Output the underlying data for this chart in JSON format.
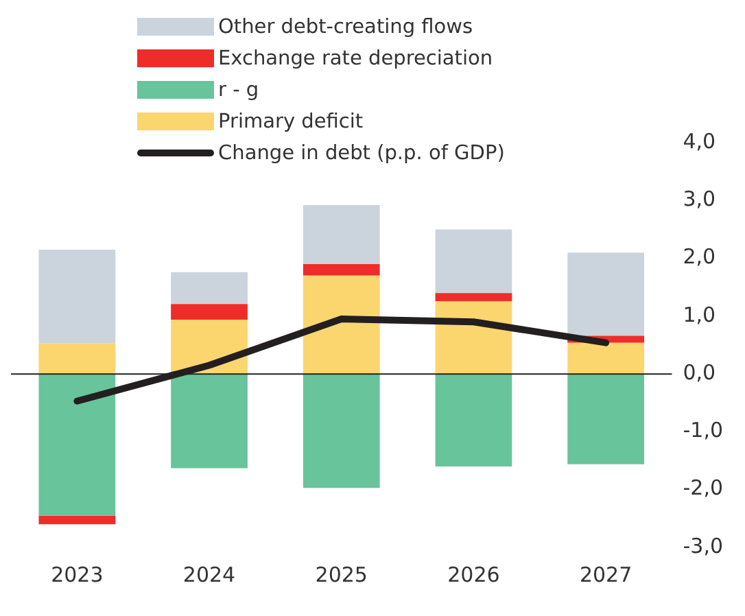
{
  "chart_data": {
    "type": "bar",
    "stacked": true,
    "categories": [
      "2023",
      "2024",
      "2025",
      "2026",
      "2027"
    ],
    "series": [
      {
        "name": "Primary deficit",
        "color": "#fbd66e",
        "values": [
          0.53,
          0.94,
          1.7,
          1.26,
          0.54
        ]
      },
      {
        "name": "r - g",
        "color": "#68c49b",
        "values": [
          -2.45,
          -1.63,
          -1.97,
          -1.6,
          -1.56
        ]
      },
      {
        "name": "Exchange rate depreciation",
        "color": "#ee2d2a",
        "values": [
          -0.15,
          0.27,
          0.2,
          0.14,
          0.12
        ]
      },
      {
        "name": "Other debt-creating flows",
        "color": "#cbd3dd",
        "values": [
          1.62,
          0.55,
          1.02,
          1.1,
          1.44
        ]
      },
      {
        "name": "Change in debt (p.p. of GDP)",
        "type": "line",
        "color": "#231f20",
        "values": [
          -0.47,
          0.15,
          0.95,
          0.9,
          0.54
        ]
      }
    ],
    "ylim": [
      -3,
      4
    ],
    "yticks": [
      {
        "value": -3,
        "label": "-3,0"
      },
      {
        "value": -2,
        "label": "-2,0"
      },
      {
        "value": -1,
        "label": "-1,0"
      },
      {
        "value": 0,
        "label": "0,0"
      },
      {
        "value": 1,
        "label": "1,0"
      },
      {
        "value": 2,
        "label": "2,0"
      },
      {
        "value": 3,
        "label": "3,0"
      },
      {
        "value": 4,
        "label": "4,0"
      }
    ],
    "ref_lines": [
      {
        "axis": "y",
        "value": 0,
        "color": "#222222"
      }
    ],
    "grid": false,
    "legend": "top left",
    "marker": "none"
  }
}
